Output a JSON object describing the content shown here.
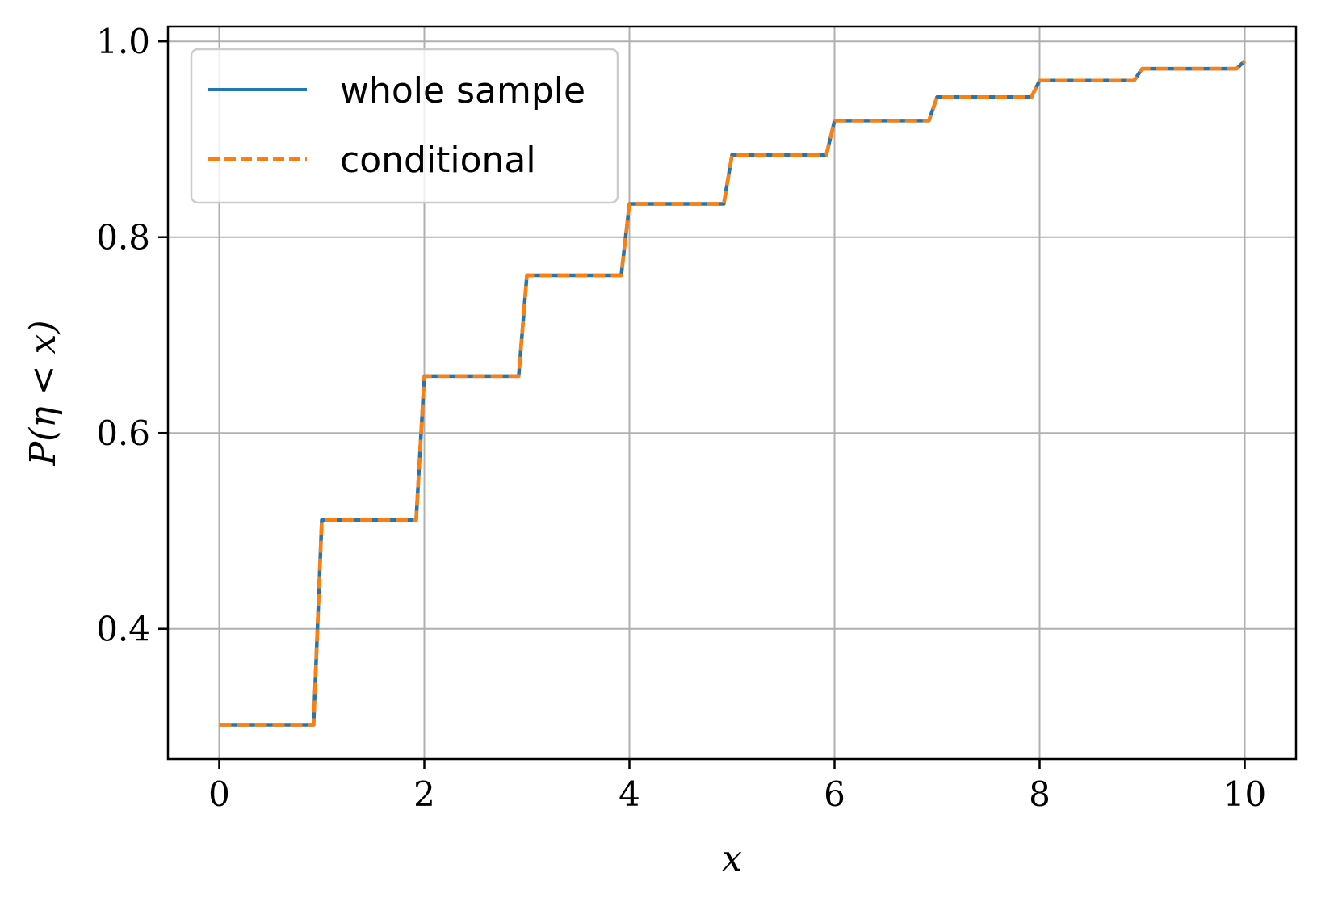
{
  "chart_data": {
    "type": "line",
    "xlabel": "x",
    "ylabel": "P(η < x)",
    "xlim": [
      -0.5,
      10.5
    ],
    "ylim": [
      0.267,
      1.015
    ],
    "xticks": [
      0,
      2,
      4,
      6,
      8,
      10
    ],
    "yticks": [
      0.4,
      0.6,
      0.8,
      1.0
    ],
    "xtick_labels": [
      "0",
      "2",
      "4",
      "6",
      "8",
      "10"
    ],
    "ytick_labels": [
      "0.4",
      "0.6",
      "0.8",
      "1.0"
    ],
    "grid": true,
    "legend_position": "upper-left",
    "series": [
      {
        "name": "whole sample",
        "color": "#1f77b4",
        "style": "solid",
        "x": [
          0,
          0.92,
          1.0,
          1.92,
          2.0,
          2.92,
          3.0,
          3.92,
          4.0,
          4.92,
          5.0,
          5.92,
          6.0,
          6.92,
          7.0,
          7.92,
          8.0,
          8.92,
          9.0,
          9.92,
          10.0
        ],
        "y": [
          0.302,
          0.302,
          0.511,
          0.511,
          0.658,
          0.658,
          0.761,
          0.761,
          0.834,
          0.834,
          0.884,
          0.884,
          0.919,
          0.919,
          0.943,
          0.943,
          0.96,
          0.96,
          0.972,
          0.972,
          0.98
        ]
      },
      {
        "name": "conditional",
        "color": "#ff7f0e",
        "style": "dashed",
        "x": [
          0,
          0.92,
          1.0,
          1.92,
          2.0,
          2.92,
          3.0,
          3.92,
          4.0,
          4.92,
          5.0,
          5.92,
          6.0,
          6.92,
          7.0,
          7.92,
          8.0,
          8.92,
          9.0,
          9.92,
          10.0
        ],
        "y": [
          0.302,
          0.302,
          0.511,
          0.511,
          0.658,
          0.658,
          0.761,
          0.761,
          0.834,
          0.834,
          0.884,
          0.884,
          0.919,
          0.919,
          0.943,
          0.943,
          0.96,
          0.96,
          0.972,
          0.972,
          0.98
        ]
      }
    ]
  }
}
